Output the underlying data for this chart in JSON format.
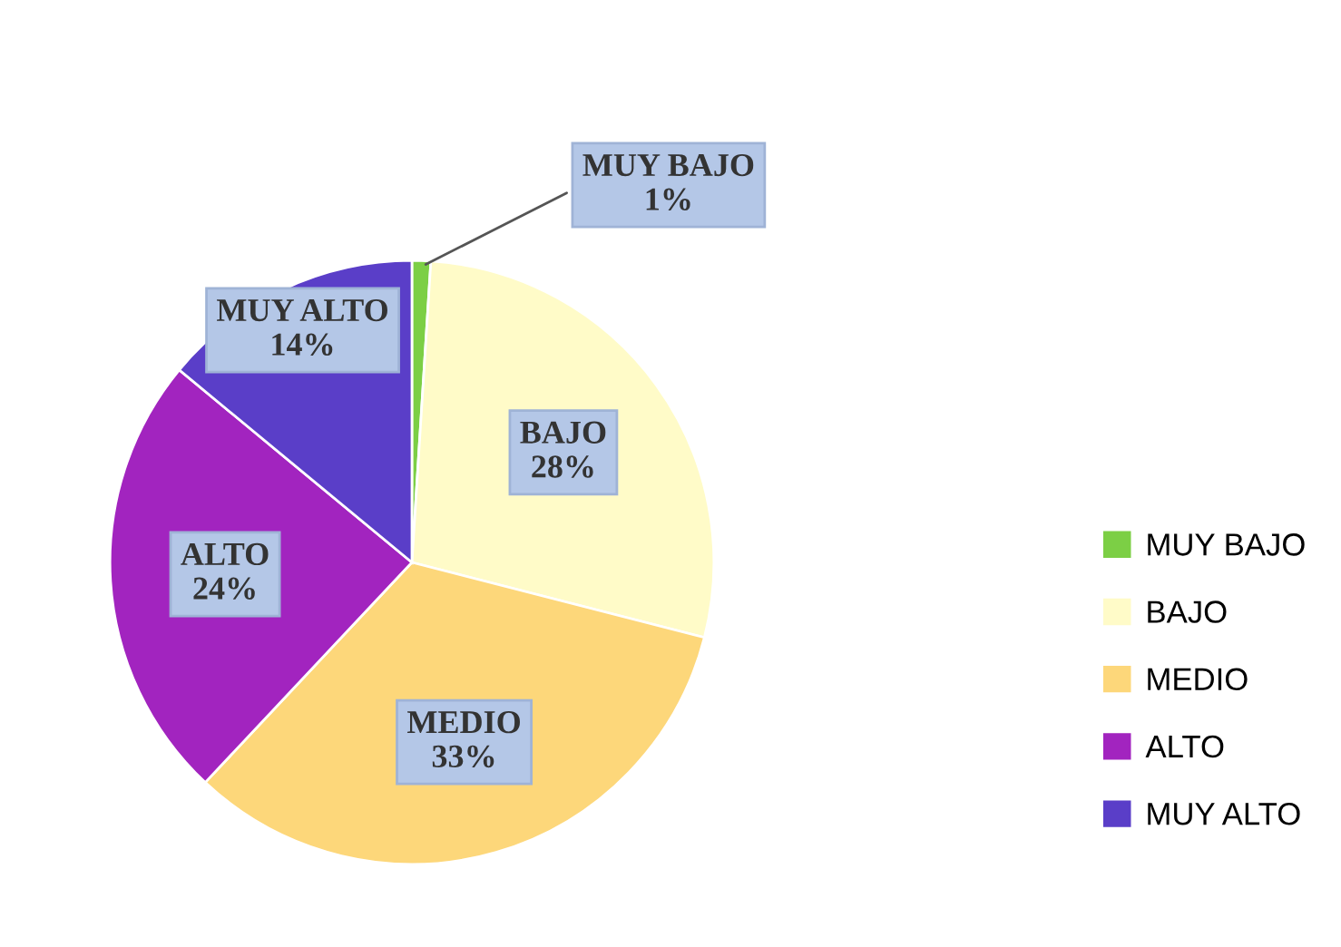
{
  "chart_data": {
    "type": "pie",
    "categories": [
      "MUY BAJO",
      "BAJO",
      "MEDIO",
      "ALTO",
      "MUY ALTO"
    ],
    "values": [
      1,
      28,
      33,
      24,
      14
    ],
    "colors": [
      "#7ccf45",
      "#fffbc8",
      "#fdd77a",
      "#a224bf",
      "#5a3ec8"
    ],
    "value_labels": [
      "1%",
      "28%",
      "33%",
      "24%",
      "14%"
    ],
    "legend": "right"
  }
}
